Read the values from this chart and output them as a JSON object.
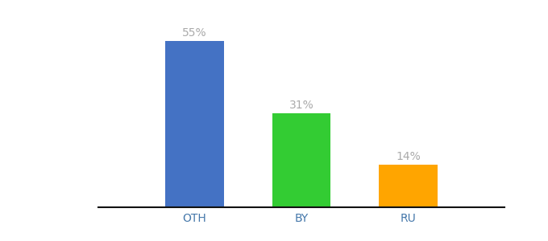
{
  "categories": [
    "OTH",
    "BY",
    "RU"
  ],
  "values": [
    55,
    31,
    14
  ],
  "bar_colors": [
    "#4472C4",
    "#33CC33",
    "#FFA500"
  ],
  "labels": [
    "55%",
    "31%",
    "14%"
  ],
  "ylim": [
    0,
    63
  ],
  "background_color": "#ffffff",
  "label_color": "#aaaaaa",
  "label_fontsize": 10,
  "tick_fontsize": 10,
  "tick_color": "#4477aa",
  "bar_width": 0.55,
  "spine_color": "#111111",
  "fig_width": 6.8,
  "fig_height": 3.0,
  "dpi": 100
}
